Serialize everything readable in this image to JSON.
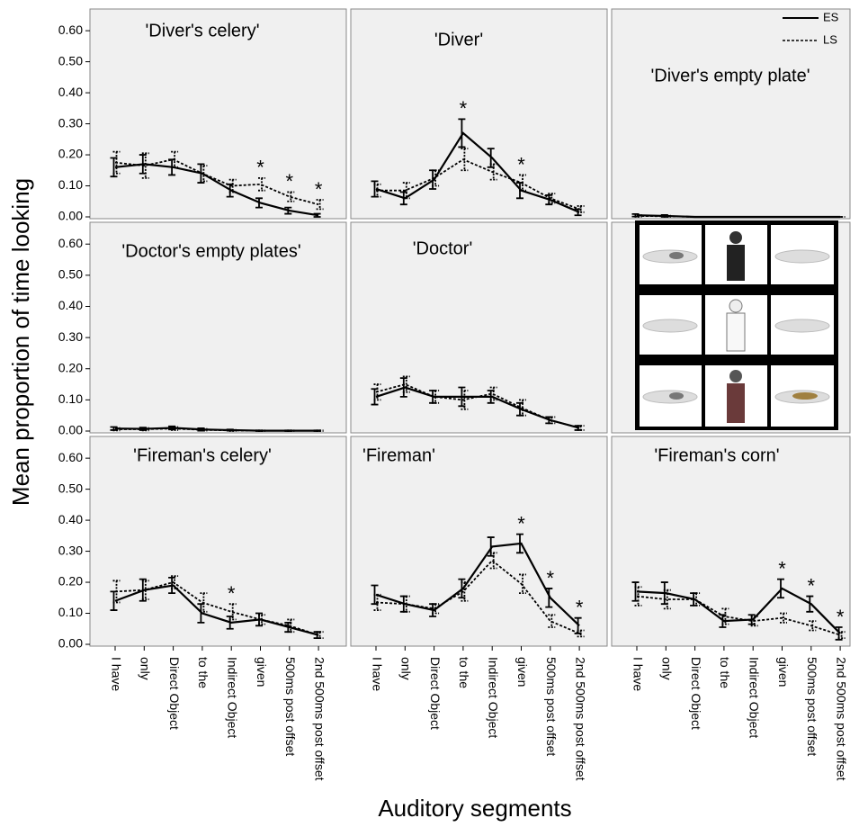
{
  "y_axis_label": "Mean proportion of time looking",
  "x_axis_label": "Auditory segments",
  "legend": {
    "position": "upper right",
    "entries": [
      {
        "name": "ES",
        "style": "solid"
      },
      {
        "name": "LS",
        "style": "dashed"
      }
    ]
  },
  "chart_data": [
    {
      "type": "line",
      "title": "'Diver's celery'",
      "ylim": [
        0,
        0.67
      ],
      "yticks": [
        {
          "value": 0,
          "label": "0.00"
        },
        {
          "value": 0.1,
          "label": "0.10"
        },
        {
          "value": 0.2,
          "label": "0.20"
        },
        {
          "value": 0.3,
          "label": "0.30"
        },
        {
          "value": 0.4,
          "label": "0.40"
        },
        {
          "value": 0.5,
          "label": "0.50"
        },
        {
          "value": 0.6,
          "label": "0.60"
        }
      ],
      "series": [
        {
          "style": "solid",
          "color": "#000000",
          "values": [
            0.16,
            0.17,
            0.16,
            0.14,
            0.085,
            0.045,
            0.02,
            0.005
          ],
          "errors": [
            0.03,
            0.03,
            0.025,
            0.03,
            0.02,
            0.015,
            0.01,
            0.005
          ]
        },
        {
          "style": "dashed",
          "color": "#000000",
          "values": [
            0.175,
            0.165,
            0.185,
            0.14,
            0.1,
            0.105,
            0.065,
            0.04
          ],
          "errors": [
            0.035,
            0.04,
            0.025,
            0.025,
            0.02,
            0.02,
            0.015,
            0.015
          ]
        }
      ],
      "annotations": [
        {
          "text": "*",
          "x": 5
        },
        {
          "text": "*",
          "x": 6
        },
        {
          "text": "*",
          "x": 7
        }
      ]
    },
    {
      "type": "line",
      "title": "'Diver'",
      "ylim": [
        0,
        0.67
      ],
      "series": [
        {
          "style": "solid",
          "color": "#000000",
          "values": [
            0.09,
            0.06,
            0.12,
            0.27,
            0.19,
            0.085,
            0.055,
            0.015
          ],
          "errors": [
            0.025,
            0.02,
            0.03,
            0.045,
            0.03,
            0.025,
            0.015,
            0.01
          ]
        },
        {
          "style": "dashed",
          "color": "#000000",
          "values": [
            0.085,
            0.085,
            0.125,
            0.185,
            0.145,
            0.11,
            0.06,
            0.025
          ],
          "errors": [
            0.02,
            0.025,
            0.025,
            0.035,
            0.025,
            0.025,
            0.015,
            0.01
          ]
        }
      ],
      "annotations": [
        {
          "text": "*",
          "x": 3
        },
        {
          "text": "*",
          "x": 5
        }
      ]
    },
    {
      "type": "line",
      "title": "'Diver's empty plate'",
      "ylim": [
        0,
        0.67
      ],
      "series": [
        {
          "style": "solid",
          "color": "#000000",
          "values": [
            0.005,
            0.003,
            0,
            0,
            0,
            0,
            0,
            0
          ],
          "errors": [
            0.004,
            0.003,
            0,
            0,
            0,
            0,
            0,
            0
          ]
        },
        {
          "style": "dashed",
          "color": "#000000",
          "values": [
            0.003,
            0.002,
            0,
            0,
            0,
            0,
            0,
            0
          ],
          "errors": [
            0.003,
            0.002,
            0,
            0,
            0,
            0,
            0,
            0
          ]
        }
      ]
    },
    {
      "type": "line",
      "title": "'Doctor's empty plates'",
      "ylim": [
        0,
        0.67
      ],
      "yticks": [
        {
          "value": 0,
          "label": "0.00"
        },
        {
          "value": 0.1,
          "label": "0.10"
        },
        {
          "value": 0.2,
          "label": "0.20"
        },
        {
          "value": 0.3,
          "label": "0.30"
        },
        {
          "value": 0.4,
          "label": "0.40"
        },
        {
          "value": 0.5,
          "label": "0.50"
        },
        {
          "value": 0.6,
          "label": "0.60"
        }
      ],
      "series": [
        {
          "style": "solid",
          "color": "#000000",
          "values": [
            0.008,
            0.007,
            0.01,
            0.005,
            0.003,
            0.001,
            0.001,
            0.001
          ],
          "errors": [
            0.005,
            0.004,
            0.005,
            0.004,
            0.002,
            0.001,
            0.001,
            0.001
          ]
        },
        {
          "style": "dashed",
          "color": "#000000",
          "values": [
            0.006,
            0.006,
            0.008,
            0.004,
            0.002,
            0.001,
            0.001,
            0.001
          ],
          "errors": [
            0.004,
            0.004,
            0.005,
            0.003,
            0.002,
            0.001,
            0.001,
            0.001
          ]
        }
      ]
    },
    {
      "type": "line",
      "title": "'Doctor'",
      "ylim": [
        0,
        0.67
      ],
      "series": [
        {
          "style": "solid",
          "color": "#000000",
          "values": [
            0.11,
            0.14,
            0.11,
            0.11,
            0.11,
            0.07,
            0.035,
            0.01
          ],
          "errors": [
            0.025,
            0.03,
            0.02,
            0.03,
            0.02,
            0.02,
            0.01,
            0.007
          ]
        },
        {
          "style": "dashed",
          "color": "#000000",
          "values": [
            0.125,
            0.15,
            0.11,
            0.1,
            0.12,
            0.075,
            0.035,
            0.01
          ],
          "errors": [
            0.025,
            0.025,
            0.02,
            0.03,
            0.02,
            0.025,
            0.01,
            0.007
          ]
        }
      ]
    },
    {
      "type": "line",
      "title": "'Fireman's celery'",
      "ylim": [
        0,
        0.67
      ],
      "yticks": [
        {
          "value": 0,
          "label": "0.00"
        },
        {
          "value": 0.1,
          "label": "0.10"
        },
        {
          "value": 0.2,
          "label": "0.20"
        },
        {
          "value": 0.3,
          "label": "0.30"
        },
        {
          "value": 0.4,
          "label": "0.40"
        },
        {
          "value": 0.5,
          "label": "0.50"
        },
        {
          "value": 0.6,
          "label": "0.60"
        }
      ],
      "categories": [
        "I have",
        "only",
        "Direct Object",
        "to the",
        "Indirect Object",
        "given",
        "500ms post offset",
        "2nd 500ms post offset"
      ],
      "series": [
        {
          "style": "solid",
          "color": "#000000",
          "values": [
            0.14,
            0.175,
            0.19,
            0.1,
            0.07,
            0.08,
            0.055,
            0.03
          ],
          "errors": [
            0.03,
            0.035,
            0.025,
            0.03,
            0.02,
            0.02,
            0.015,
            0.01
          ]
        },
        {
          "style": "dashed",
          "color": "#000000",
          "values": [
            0.17,
            0.175,
            0.2,
            0.135,
            0.105,
            0.08,
            0.06,
            0.03
          ],
          "errors": [
            0.035,
            0.03,
            0.02,
            0.03,
            0.025,
            0.015,
            0.02,
            0.01
          ]
        }
      ],
      "annotations": [
        {
          "text": "*",
          "x": 4
        }
      ]
    },
    {
      "type": "line",
      "title": "'Fireman'",
      "ylim": [
        0,
        0.67
      ],
      "categories": [
        "I have",
        "only",
        "Direct Object",
        "to the",
        "Indirect Object",
        "given",
        "500ms post offset",
        "2nd 500ms post offset"
      ],
      "series": [
        {
          "style": "solid",
          "color": "#000000",
          "values": [
            0.16,
            0.13,
            0.11,
            0.18,
            0.315,
            0.325,
            0.15,
            0.06
          ],
          "errors": [
            0.03,
            0.025,
            0.02,
            0.03,
            0.03,
            0.03,
            0.03,
            0.025
          ]
        },
        {
          "style": "dashed",
          "color": "#000000",
          "values": [
            0.135,
            0.13,
            0.115,
            0.17,
            0.27,
            0.195,
            0.075,
            0.035
          ],
          "errors": [
            0.025,
            0.025,
            0.015,
            0.03,
            0.025,
            0.03,
            0.02,
            0.01
          ]
        }
      ],
      "annotations": [
        {
          "text": "*",
          "x": 5
        },
        {
          "text": "*",
          "x": 6
        },
        {
          "text": "*",
          "x": 7
        }
      ]
    },
    {
      "type": "line",
      "title": "'Fireman's corn'",
      "ylim": [
        0,
        0.67
      ],
      "categories": [
        "I have",
        "only",
        "Direct Object",
        "to the",
        "Indirect Object",
        "given",
        "500ms post offset",
        "2nd 500ms post offset"
      ],
      "series": [
        {
          "style": "solid",
          "color": "#000000",
          "values": [
            0.17,
            0.165,
            0.145,
            0.075,
            0.08,
            0.18,
            0.13,
            0.035
          ],
          "errors": [
            0.03,
            0.035,
            0.02,
            0.02,
            0.015,
            0.03,
            0.025,
            0.02
          ]
        },
        {
          "style": "dashed",
          "color": "#000000",
          "values": [
            0.155,
            0.145,
            0.145,
            0.09,
            0.075,
            0.085,
            0.06,
            0.03
          ],
          "errors": [
            0.03,
            0.03,
            0.02,
            0.025,
            0.015,
            0.015,
            0.015,
            0.01
          ]
        }
      ],
      "annotations": [
        {
          "text": "*",
          "x": 5
        },
        {
          "text": "*",
          "x": 6
        },
        {
          "text": "*",
          "x": 7
        }
      ]
    }
  ]
}
